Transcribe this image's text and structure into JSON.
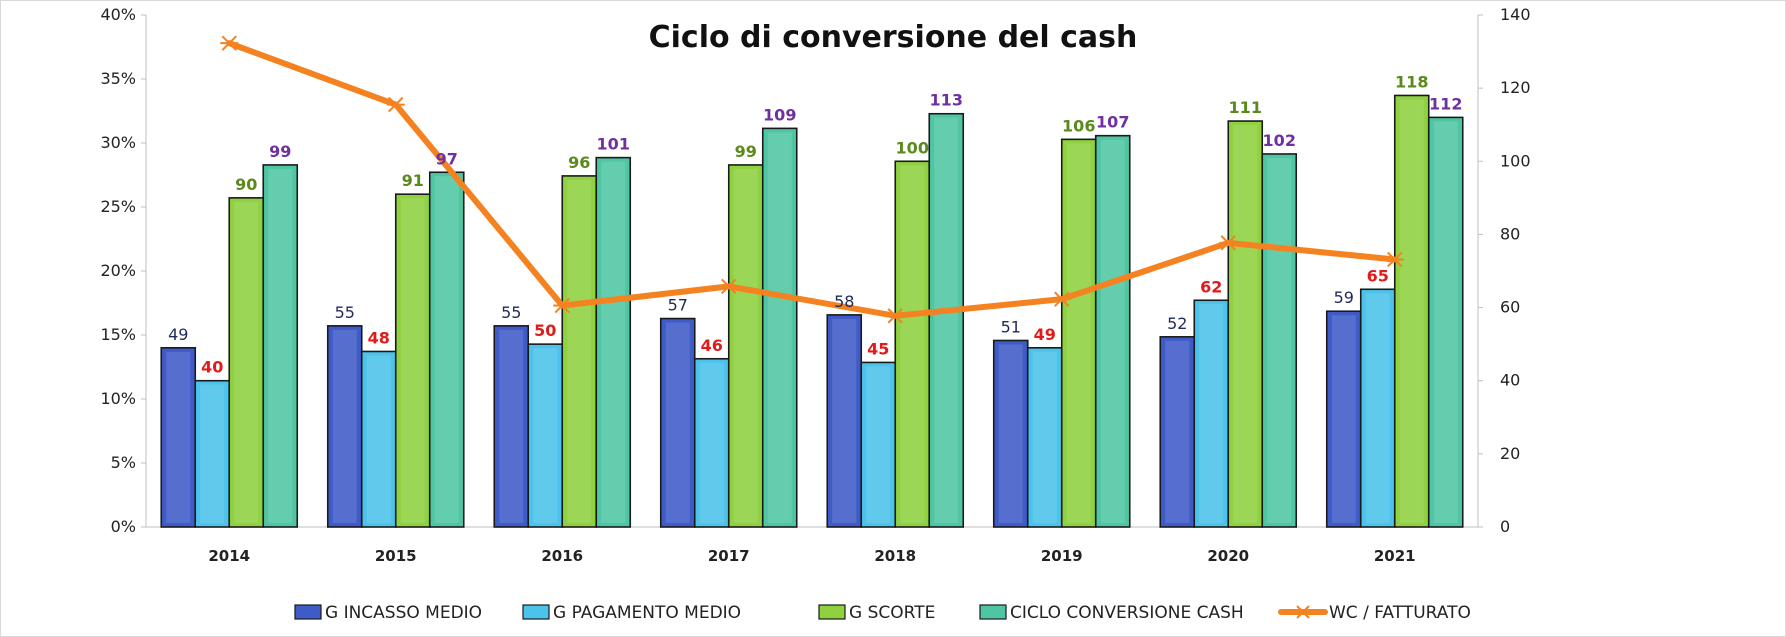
{
  "chart_data": {
    "type": "bar",
    "title": "Ciclo di conversione del cash",
    "categories": [
      "2014",
      "2015",
      "2016",
      "2017",
      "2018",
      "2019",
      "2020",
      "2021"
    ],
    "y_left": {
      "ticks": [
        "0%",
        "5%",
        "10%",
        "15%",
        "20%",
        "25%",
        "30%",
        "35%",
        "40%"
      ],
      "min": 0,
      "max": 40,
      "unit": "%"
    },
    "y_right": {
      "ticks": [
        "0",
        "20",
        "40",
        "60",
        "80",
        "100",
        "120",
        "140"
      ],
      "min": 0,
      "max": 140
    },
    "series": [
      {
        "name": "G INCASSO MEDIO",
        "kind": "bar",
        "axis": "right",
        "color": "#3f5bc8",
        "label_color": "#1f2a5c",
        "label_bold": false,
        "values": [
          49,
          55,
          55,
          57,
          58,
          51,
          52,
          59
        ],
        "labels": [
          "49",
          "55",
          "55",
          "57",
          "58",
          "51",
          "52",
          "59"
        ]
      },
      {
        "name": "G PAGAMENTO MEDIO",
        "kind": "bar",
        "axis": "right",
        "color": "#4cc3ea",
        "label_color": "#e01b1b",
        "label_bold": true,
        "values": [
          40,
          48,
          50,
          46,
          45,
          49,
          62,
          65
        ],
        "labels": [
          "40",
          "48",
          "50",
          "46",
          "45",
          "49",
          "62",
          "65"
        ]
      },
      {
        "name": "G SCORTE",
        "kind": "bar",
        "axis": "right",
        "color": "#8fd13f",
        "label_color": "#5a8a1c",
        "label_bold": true,
        "values": [
          90,
          91,
          96,
          99,
          100,
          106,
          111,
          118
        ],
        "labels": [
          "90",
          "91",
          "96",
          "99",
          "100",
          "106",
          "111",
          "118"
        ]
      },
      {
        "name": "CICLO CONVERSIONE CASH",
        "kind": "bar",
        "axis": "right",
        "color": "#4fc6a3",
        "label_color": "#7030a0",
        "label_bold": true,
        "values": [
          99,
          97,
          101,
          109,
          113,
          107,
          102,
          112
        ],
        "labels": [
          "99",
          "97",
          "101",
          "109",
          "113",
          "107",
          "102",
          "112"
        ]
      },
      {
        "name": "WC / FATTURATO",
        "kind": "line",
        "axis": "left",
        "color": "#f58220",
        "values": [
          37.8,
          33.0,
          17.3,
          18.8,
          16.5,
          17.8,
          22.2,
          20.9
        ]
      }
    ],
    "legend_position": "bottom",
    "grid": false
  }
}
